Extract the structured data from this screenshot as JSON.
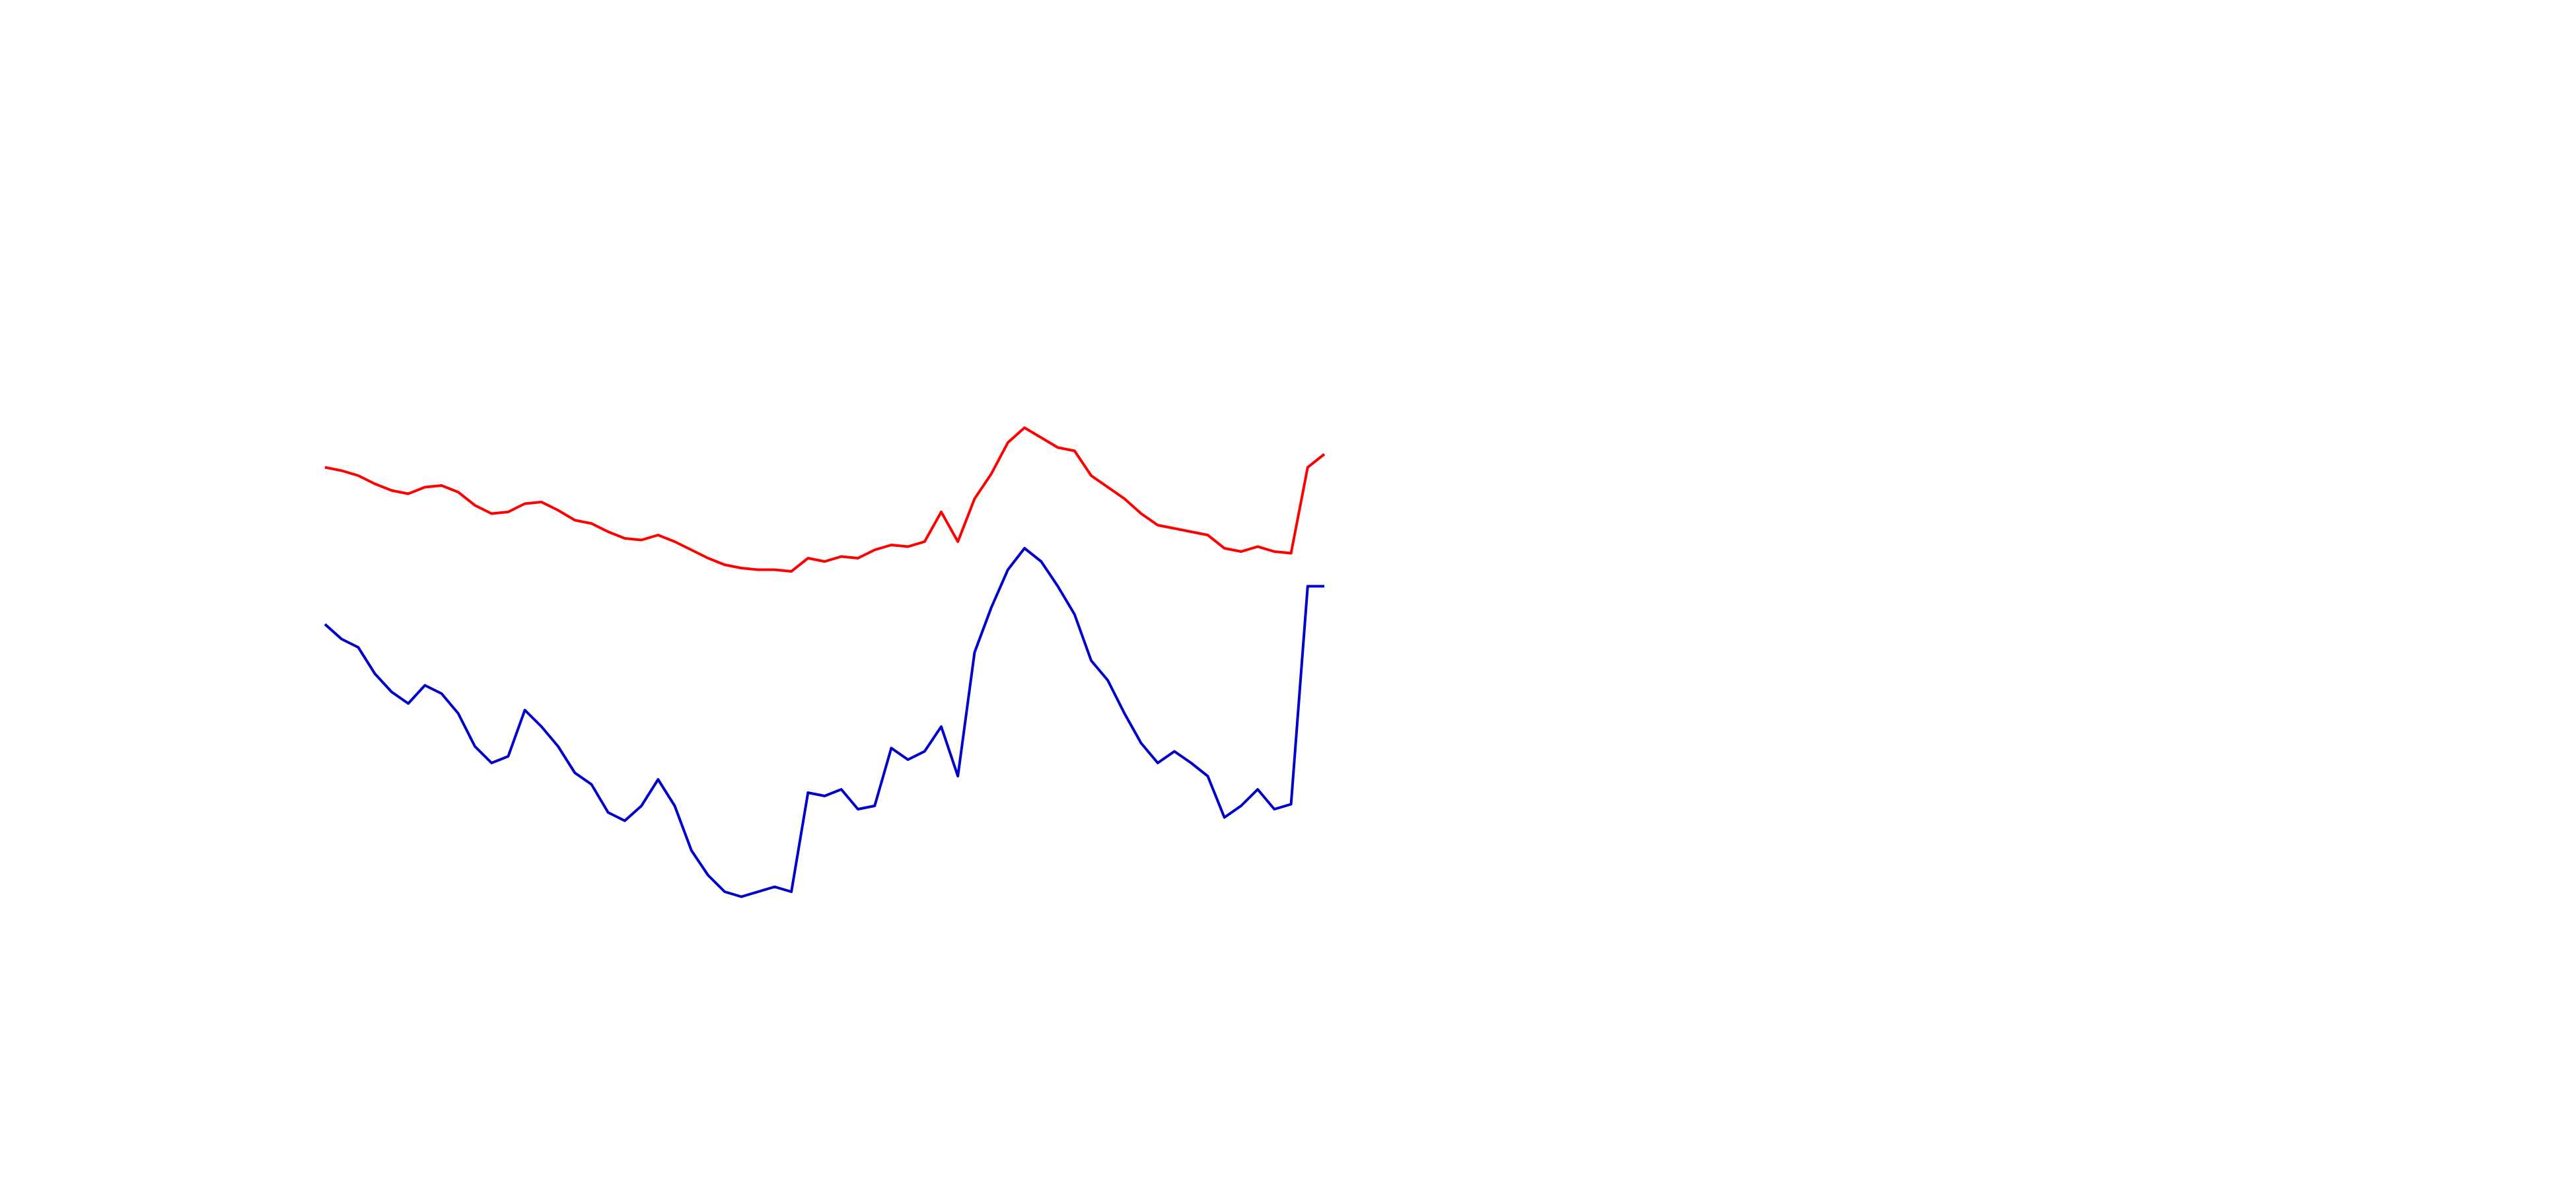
{
  "chart_data": {
    "type": "line",
    "ylim": [
      0,
      720
    ],
    "series": [
      {
        "color": "#ff0000",
        "values": [
          437,
          435,
          432,
          427,
          423,
          421,
          425,
          426,
          422,
          414,
          409,
          410,
          415,
          416,
          411,
          405,
          403,
          398,
          394,
          393,
          396,
          392,
          387,
          382,
          378,
          376,
          375,
          375,
          374,
          382,
          380,
          383,
          382,
          387,
          390,
          389,
          392,
          410,
          392,
          418,
          433,
          452,
          461,
          455,
          449,
          447,
          432,
          425,
          418,
          409,
          402,
          400,
          398,
          396,
          388,
          386,
          389,
          386,
          385,
          437,
          445
        ]
      },
      {
        "color": "#0000cc",
        "values": [
          342,
          333,
          328,
          312,
          301,
          294,
          305,
          300,
          288,
          268,
          258,
          262,
          290,
          280,
          268,
          252,
          245,
          228,
          223,
          232,
          248,
          232,
          205,
          190,
          180,
          177,
          180,
          183,
          180,
          240,
          238,
          242,
          230,
          232,
          267,
          260,
          265,
          280,
          250,
          325,
          352,
          375,
          388,
          380,
          365,
          348,
          320,
          308,
          288,
          270,
          258,
          265,
          258,
          250,
          225,
          232,
          242,
          230,
          233,
          365,
          365
        ]
      }
    ]
  }
}
